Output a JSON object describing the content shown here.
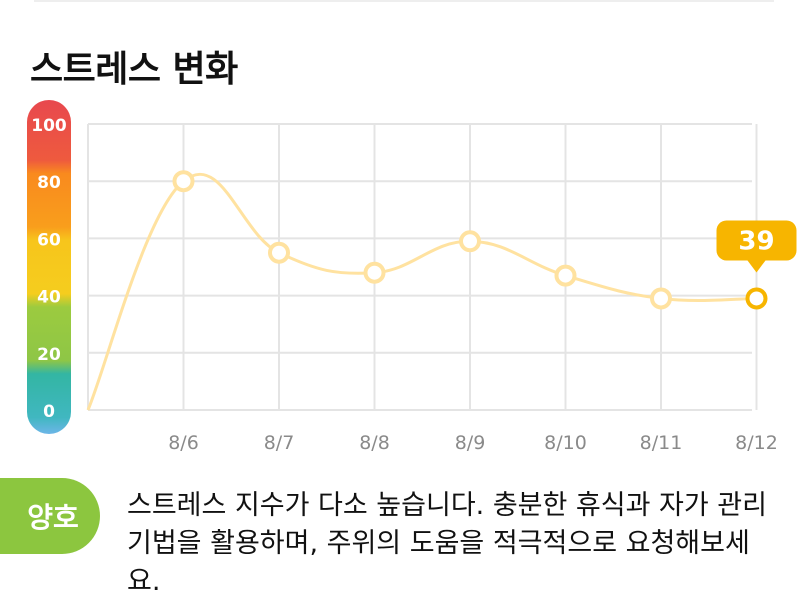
{
  "title": "스트레스 변화",
  "chart_data": {
    "type": "line",
    "categories": [
      "8/6",
      "8/7",
      "8/8",
      "8/9",
      "8/10",
      "8/11",
      "8/12"
    ],
    "series": [
      {
        "values": [
          80,
          55,
          48,
          59,
          47,
          39,
          39
        ]
      }
    ],
    "start_value": 0,
    "ylim": [
      0,
      100
    ],
    "yticks": [
      "100",
      "80",
      "60",
      "40",
      "20",
      "0"
    ],
    "grid": true,
    "current_value_label": "39",
    "line_color": "#ffe2a0",
    "marker_color": "#ffe2a0",
    "current_marker_color": "#f7b500",
    "scale_colors": [
      "#e8484e",
      "#f98a1e",
      "#f7c51c",
      "#9ccb3f",
      "#33b6a3",
      "#6db6e8"
    ]
  },
  "status": {
    "label": "양호",
    "color": "#8cc63f"
  },
  "message": "스트레스 지수가 다소 높습니다. 충분한 휴식과 자가 관리 기법을 활용하며, 주위의 도움을 적극적으로 요청해보세요."
}
